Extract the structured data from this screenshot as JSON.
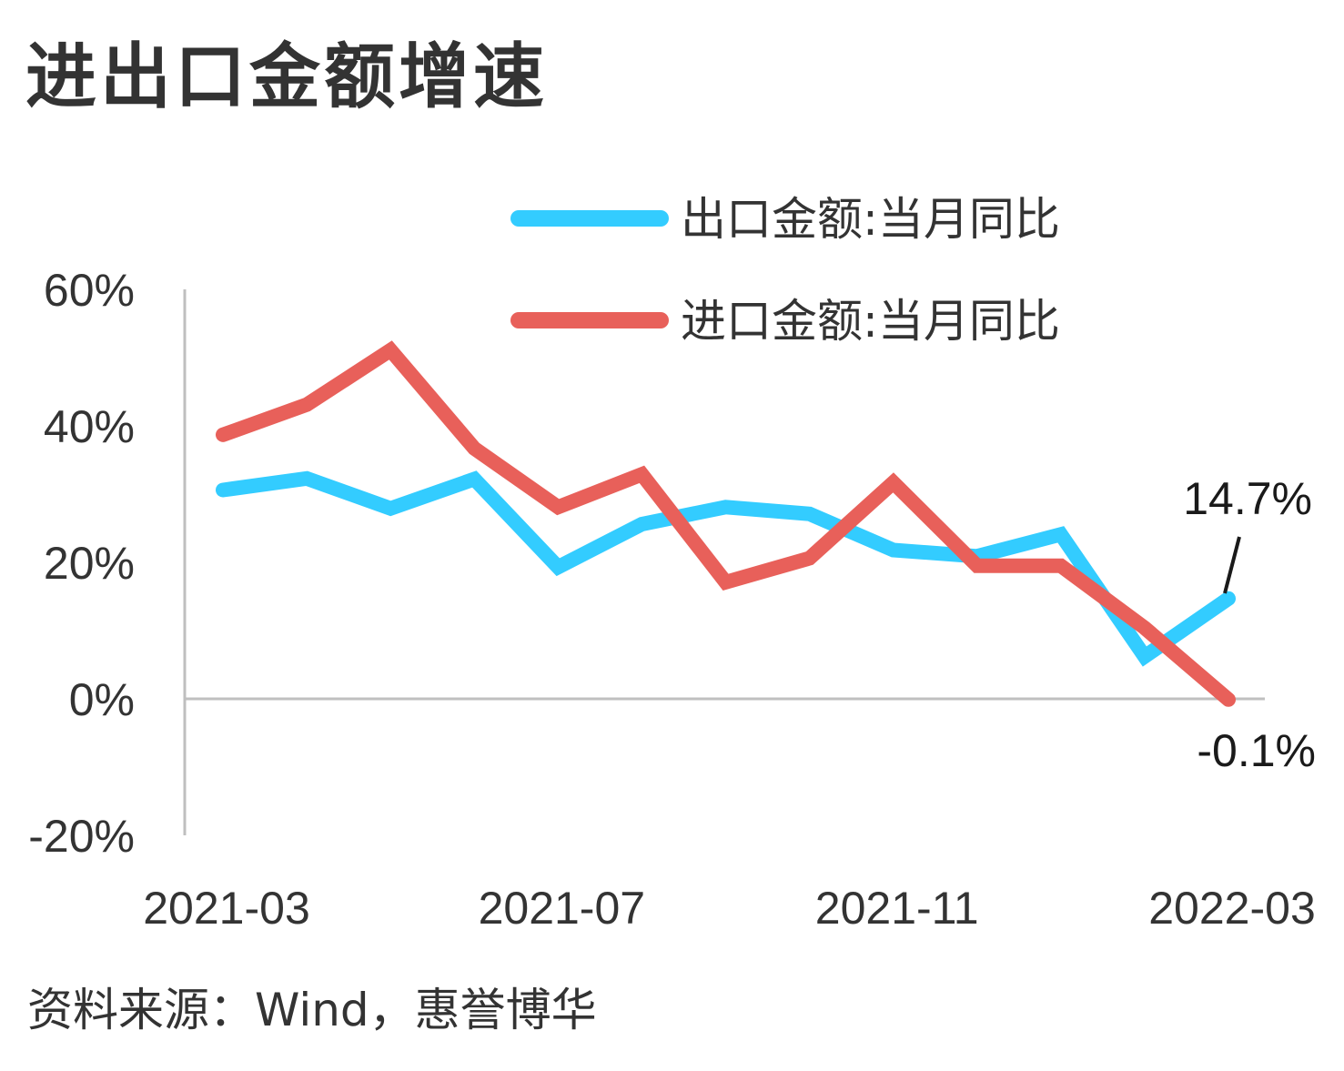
{
  "title": "进出口金额增速",
  "source": "资料来源：Wind，惠誉博华",
  "colors": {
    "export": "#33ccff",
    "import": "#e8605a",
    "axis": "#bfbfbf",
    "text": "#333333"
  },
  "chart_data": {
    "type": "line",
    "x": [
      "2021-03",
      "2021-04",
      "2021-05",
      "2021-06",
      "2021-07",
      "2021-08",
      "2021-09",
      "2021-10",
      "2021-11",
      "2021-12",
      "2022-01",
      "2022-02",
      "2022-03"
    ],
    "x_tick_labels": [
      "2021-03",
      "2021-07",
      "2021-11",
      "2022-03"
    ],
    "y_tick_labels": [
      "60%",
      "40%",
      "20%",
      "0%",
      "-20%"
    ],
    "ylim": [
      -20,
      60
    ],
    "grid": false,
    "legend_position": "top-right",
    "series": [
      {
        "name": "出口金额:当月同比",
        "color": "#33ccff",
        "values": [
          30.6,
          32.3,
          27.9,
          32.2,
          19.3,
          25.6,
          28.1,
          27.1,
          21.8,
          20.9,
          24.1,
          6.2,
          14.7
        ]
      },
      {
        "name": "进口金额:当月同比",
        "color": "#e8605a",
        "values": [
          38.7,
          43.1,
          51.1,
          36.7,
          28.1,
          32.9,
          17.1,
          20.6,
          31.7,
          19.5,
          19.5,
          10.4,
          -0.1
        ]
      }
    ],
    "annotations": [
      {
        "text": "14.7%",
        "series": "出口金额:当月同比",
        "x": "2022-03",
        "y": 14.7
      },
      {
        "text": "-0.1%",
        "series": "进口金额:当月同比",
        "x": "2022-03",
        "y": -0.1
      }
    ]
  }
}
